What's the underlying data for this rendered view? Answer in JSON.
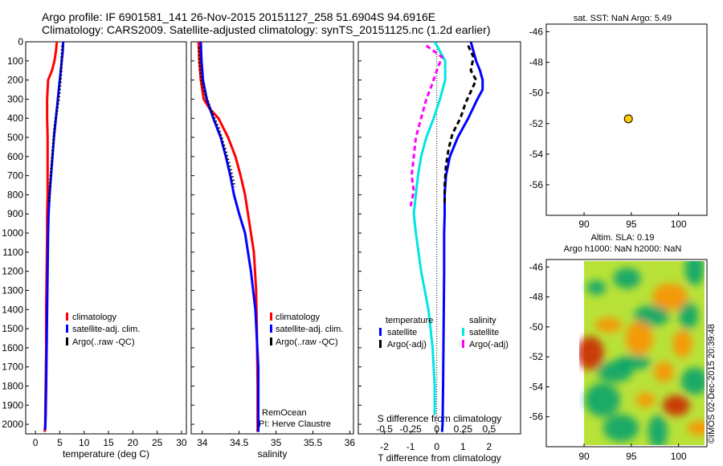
{
  "header": {
    "line1": "Argo profile: IF 6901581_141 26-Nov-2015 20151127_258 51.6904S 94.6916E",
    "line2": "Climatology: CARS2009. Satellite-adjusted climatology: synTS_20151125.nc (1.2d earlier)"
  },
  "stamp": "©IMOS 02-Dec-2015 20:39:48",
  "chart_data": [
    {
      "type": "line",
      "xlabel": "temperature (deg C)",
      "ylabel": "",
      "xlim": [
        -2,
        31
      ],
      "ylim": [
        2050,
        0
      ],
      "xticks": [
        0,
        5,
        10,
        15,
        20,
        25,
        30
      ],
      "yticks": [
        0,
        100,
        200,
        300,
        400,
        500,
        600,
        700,
        800,
        900,
        1000,
        1100,
        1200,
        1300,
        1400,
        1500,
        1600,
        1700,
        1800,
        1900,
        2000
      ],
      "legend": [
        "climatology",
        "satellite-adj. clim.",
        "Argo(..raw -QC)"
      ],
      "series": [
        {
          "name": "climatology",
          "color": "#ff0000",
          "style": "solid",
          "x": [
            4.4,
            4.2,
            3.9,
            3.4,
            2.6,
            2.4,
            2.4,
            2.5,
            2.5,
            2.5,
            2.5,
            2.4,
            2.4,
            2.3,
            2.2,
            2.2,
            2.1,
            2.0,
            1.9
          ],
          "y": [
            0,
            50,
            100,
            150,
            200,
            300,
            400,
            500,
            600,
            700,
            800,
            900,
            1000,
            1200,
            1400,
            1600,
            1800,
            2000,
            2040
          ]
        },
        {
          "name": "satellite-adj. clim.",
          "color": "#0000ff",
          "style": "solid",
          "x": [
            5.7,
            5.6,
            5.4,
            5.2,
            5.0,
            4.6,
            4.2,
            3.8,
            3.5,
            3.2,
            2.9,
            2.7,
            2.6,
            2.5,
            2.4,
            2.3,
            2.2,
            2.1,
            2.0
          ],
          "y": [
            0,
            50,
            100,
            150,
            200,
            300,
            400,
            500,
            600,
            700,
            800,
            900,
            1000,
            1200,
            1400,
            1600,
            1800,
            1950,
            2030
          ]
        },
        {
          "name": "Argo(..raw -QC)",
          "color": "#000000",
          "style": "dots",
          "x": [
            5.5,
            5.4,
            5.3,
            5.1,
            4.8,
            4.3,
            3.9,
            3.6,
            3.3,
            3.0,
            2.8
          ],
          "y": [
            20,
            80,
            150,
            220,
            300,
            380,
            450,
            550,
            650,
            750,
            850
          ]
        }
      ]
    },
    {
      "type": "line",
      "xlabel": "salinity",
      "ylabel": "",
      "xlim": [
        33.85,
        36.05
      ],
      "ylim": [
        2050,
        0
      ],
      "xticks": [
        34,
        34.5,
        35,
        35.5,
        36
      ],
      "legend": [
        "climatology",
        "satellite-adj. clim.",
        "Argo(..raw -QC)"
      ],
      "annotations": [
        "RemOcean",
        "PI: Herve Claustre"
      ],
      "series": [
        {
          "name": "climatology",
          "color": "#ff0000",
          "style": "solid",
          "x": [
            33.95,
            33.96,
            33.98,
            34.02,
            34.1,
            34.22,
            34.35,
            34.45,
            34.52,
            34.58,
            34.62,
            34.66,
            34.7,
            34.73,
            34.74,
            34.75,
            34.75
          ],
          "y": [
            0,
            100,
            200,
            300,
            350,
            400,
            500,
            600,
            700,
            800,
            900,
            1000,
            1100,
            1300,
            1500,
            1800,
            2040
          ]
        },
        {
          "name": "satellite-adj. clim.",
          "color": "#0000ff",
          "style": "solid",
          "x": [
            33.98,
            33.99,
            34.01,
            34.06,
            34.15,
            34.25,
            34.32,
            34.38,
            34.43,
            34.5,
            34.58,
            34.66,
            34.72,
            34.76,
            34.76
          ],
          "y": [
            0,
            100,
            200,
            300,
            400,
            500,
            600,
            700,
            800,
            900,
            1000,
            1200,
            1400,
            1700,
            2040
          ]
        },
        {
          "name": "Argo(..raw -QC)",
          "color": "#000000",
          "style": "dots",
          "x": [
            33.96,
            33.96,
            33.98,
            34.03,
            34.12,
            34.22,
            34.31,
            34.38,
            34.44
          ],
          "y": [
            30,
            100,
            180,
            260,
            360,
            450,
            560,
            660,
            760
          ]
        }
      ]
    },
    {
      "type": "line",
      "xlabel": "T difference from climatology",
      "xlabel2": "S difference from climatology",
      "ylabel": "",
      "xlim": [
        -3.0,
        3.2
      ],
      "ylim": [
        2050,
        0
      ],
      "xticks": [
        -2,
        -1,
        0,
        1,
        2
      ],
      "xticks2": [
        -0.5,
        -0.25,
        0,
        0.25,
        0.5
      ],
      "legend": [
        "temperature",
        "satellite",
        "Argo(-adj)",
        "salinity",
        "satellite",
        "Argo(-adj)"
      ],
      "series": [
        {
          "name": "satellite",
          "quantity": "temperature",
          "color": "#0000ff",
          "style": "solid",
          "x": [
            1.3,
            1.4,
            1.5,
            1.65,
            1.75,
            1.75,
            1.55,
            1.2,
            0.8,
            0.5,
            0.35,
            0.3,
            0.3,
            0.28,
            0.28,
            0.26,
            0.24,
            0.22,
            0.2
          ],
          "y": [
            0,
            50,
            100,
            150,
            200,
            250,
            300,
            400,
            500,
            600,
            700,
            800,
            900,
            1000,
            1200,
            1500,
            1800,
            2000,
            2040
          ]
        },
        {
          "name": "Argo(-adj)",
          "quantity": "temperature",
          "color": "#000000",
          "style": "dashed",
          "x": [
            1.2,
            1.4,
            1.3,
            1.5,
            1.3,
            1.1,
            0.9,
            0.6,
            0.45,
            0.35,
            0.3,
            0.3
          ],
          "y": [
            20,
            80,
            150,
            200,
            260,
            320,
            400,
            480,
            560,
            650,
            750,
            850
          ]
        },
        {
          "name": "satellite",
          "quantity": "salinity",
          "color": "#00e5e5",
          "style": "solid",
          "x": [
            -0.02,
            0.03,
            0.08,
            0.08,
            0.03,
            -0.03,
            -0.1,
            -0.15,
            -0.18,
            -0.2,
            -0.22,
            -0.2,
            -0.15,
            -0.08,
            -0.04,
            -0.02,
            -0.02
          ],
          "y": [
            0,
            50,
            100,
            200,
            300,
            400,
            500,
            600,
            700,
            800,
            900,
            1000,
            1200,
            1400,
            1600,
            1800,
            1950
          ]
        },
        {
          "name": "Argo(-adj)",
          "quantity": "salinity",
          "color": "#ff00ff",
          "style": "dashed",
          "x": [
            -0.1,
            0.05,
            0.0,
            -0.05,
            -0.1,
            -0.15,
            -0.2,
            -0.22,
            -0.24,
            -0.22,
            -0.25
          ],
          "y": [
            20,
            80,
            150,
            230,
            300,
            400,
            500,
            600,
            700,
            780,
            860
          ]
        }
      ]
    },
    {
      "type": "scatter",
      "title": "sat. SST: NaN Argo: 5.49",
      "xlim": [
        86,
        103
      ],
      "ylim": [
        -58,
        -45.5
      ],
      "xticks": [
        90,
        95,
        100
      ],
      "yticks": [
        -46,
        -48,
        -50,
        -52,
        -54,
        -56
      ],
      "points": [
        {
          "x": 94.69,
          "y": -51.69,
          "color": "#ffcc00"
        }
      ]
    },
    {
      "type": "heatmap",
      "title": "Altim. SLA: 0.19",
      "subtitle": "Argo h1000: NaN h2000: NaN",
      "xlim": [
        86,
        103
      ],
      "ylim": [
        -58,
        -45.5
      ],
      "xticks": [
        90,
        95,
        100
      ],
      "yticks": [
        -46,
        -48,
        -50,
        -52,
        -54,
        -56
      ],
      "data_extent": {
        "x": [
          90,
          103
        ],
        "y": [
          -58,
          -45.5
        ]
      },
      "colors": {
        "base": "#b8e238",
        "low": "#00a070",
        "high": "#ff8c00",
        "peak": "#cc2200"
      }
    }
  ]
}
